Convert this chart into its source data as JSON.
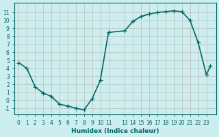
{
  "x_vals": [
    0,
    1,
    2,
    3,
    4,
    5,
    6,
    7,
    8,
    9,
    10,
    11,
    13,
    14,
    15,
    16,
    17,
    18,
    19,
    20,
    21,
    22,
    23,
    23.5
  ],
  "y_vals": [
    4.7,
    4.0,
    1.7,
    0.9,
    0.5,
    -0.5,
    -0.7,
    -1.0,
    -1.2,
    0.2,
    2.5,
    8.5,
    8.7,
    9.9,
    10.5,
    10.8,
    11.0,
    11.1,
    11.2,
    11.1,
    10.0,
    7.2,
    3.2,
    4.3
  ],
  "line_color": "#006666",
  "bg_color": "#cceeee",
  "grid_color": "#bbbbbb",
  "xlabel": "Humidex (Indice chaleur)",
  "xlim": [
    -0.5,
    24.2
  ],
  "ylim": [
    -1.8,
    12.2
  ],
  "yticks": [
    -1,
    0,
    1,
    2,
    3,
    4,
    5,
    6,
    7,
    8,
    9,
    10,
    11
  ],
  "xticks": [
    0,
    1,
    2,
    3,
    4,
    5,
    6,
    7,
    8,
    9,
    10,
    11,
    13,
    14,
    15,
    16,
    17,
    18,
    19,
    20,
    21,
    22,
    23
  ],
  "xtick_labels": [
    "0",
    "1",
    "2",
    "3",
    "4",
    "5",
    "6",
    "7",
    "8",
    "9",
    "10",
    "11",
    "13",
    "14",
    "15",
    "16",
    "17",
    "18",
    "19",
    "20",
    "21",
    "22",
    "23"
  ],
  "marker": "+",
  "marker_size": 4,
  "linewidth": 1.2
}
